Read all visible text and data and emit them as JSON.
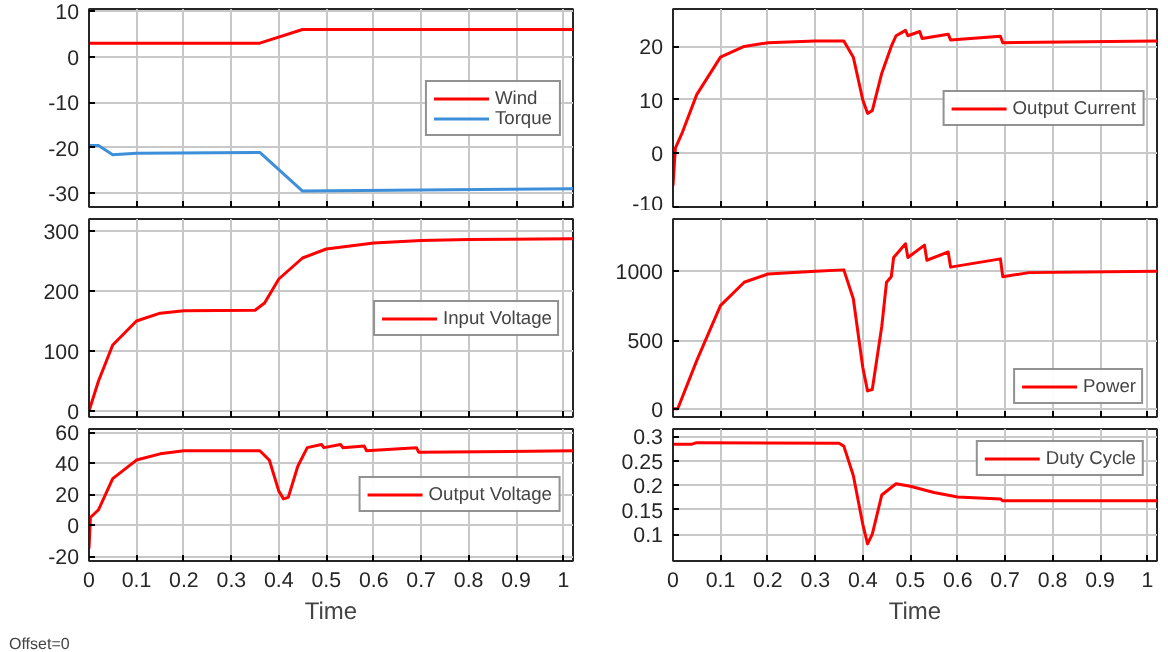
{
  "chart_data": [
    {
      "type": "line",
      "xlim": [
        0,
        1.02
      ],
      "xticks": [
        0,
        0.1,
        0.2,
        0.3,
        0.4,
        0.5,
        0.6,
        0.7,
        0.8,
        0.9,
        1
      ],
      "ylim": [
        -33,
        10.5
      ],
      "yticks": [
        -30,
        -20,
        -10,
        0,
        10
      ],
      "grid": true,
      "legend": "right",
      "tick_labels": "y",
      "x": [
        0,
        0.02,
        0.05,
        0.1,
        0.36,
        0.45,
        1.02
      ],
      "series": [
        {
          "name": "Wind",
          "color": "#ff0000",
          "values": [
            3,
            3,
            3,
            3,
            3,
            6,
            6
          ]
        },
        {
          "name": "Torque",
          "color": "#3d8fd9",
          "values": [
            -19.5,
            -19.5,
            -21.5,
            -21.2,
            -21,
            -29.5,
            -29
          ]
        }
      ]
    },
    {
      "type": "line",
      "xlim": [
        0,
        1.02
      ],
      "xticks": [
        0,
        0.1,
        0.2,
        0.3,
        0.4,
        0.5,
        0.6,
        0.7,
        0.8,
        0.9,
        1
      ],
      "ylim": [
        -10,
        27
      ],
      "yticks": [
        -10,
        0,
        10,
        20
      ],
      "grid": true,
      "legend": "right",
      "tick_labels": "y",
      "x": [
        0,
        0.005,
        0.02,
        0.05,
        0.1,
        0.15,
        0.2,
        0.3,
        0.36,
        0.38,
        0.4,
        0.41,
        0.42,
        0.44,
        0.46,
        0.47,
        0.48,
        0.49,
        0.495,
        0.52,
        0.525,
        0.58,
        0.585,
        0.69,
        0.695,
        1.02
      ],
      "series": [
        {
          "name": "Output Current",
          "color": "#ff0000",
          "values": [
            -6,
            1,
            4,
            11,
            18,
            20,
            20.7,
            21,
            21,
            18,
            10,
            7.5,
            8,
            15,
            20,
            22,
            22.5,
            23,
            22,
            22.8,
            21.5,
            22.3,
            21.2,
            21.9,
            20.7,
            21
          ]
        }
      ]
    },
    {
      "type": "line",
      "xlim": [
        0,
        1.02
      ],
      "xticks": [
        0,
        0.1,
        0.2,
        0.3,
        0.4,
        0.5,
        0.6,
        0.7,
        0.8,
        0.9,
        1
      ],
      "ylim": [
        -10,
        320
      ],
      "yticks": [
        0,
        100,
        200,
        300
      ],
      "grid": true,
      "legend": "right",
      "tick_labels": "y",
      "x": [
        0,
        0.02,
        0.05,
        0.1,
        0.15,
        0.2,
        0.35,
        0.37,
        0.4,
        0.45,
        0.5,
        0.6,
        0.7,
        0.8,
        1.02
      ],
      "series": [
        {
          "name": "Input Voltage",
          "color": "#ff0000",
          "values": [
            0,
            50,
            110,
            150,
            163,
            167,
            168,
            180,
            220,
            255,
            270,
            280,
            284,
            286,
            287
          ]
        }
      ]
    },
    {
      "type": "line",
      "xlim": [
        0,
        1.02
      ],
      "xticks": [
        0,
        0.1,
        0.2,
        0.3,
        0.4,
        0.5,
        0.6,
        0.7,
        0.8,
        0.9,
        1
      ],
      "ylim": [
        -60,
        1380
      ],
      "yticks": [
        0,
        500,
        1000
      ],
      "grid": true,
      "legend": "bottom right",
      "tick_labels": "y",
      "x": [
        0,
        0.01,
        0.05,
        0.1,
        0.15,
        0.2,
        0.3,
        0.36,
        0.38,
        0.4,
        0.41,
        0.42,
        0.44,
        0.45,
        0.46,
        0.465,
        0.49,
        0.495,
        0.53,
        0.535,
        0.58,
        0.585,
        0.69,
        0.695,
        0.75,
        1.02
      ],
      "series": [
        {
          "name": "Power",
          "color": "#ff0000",
          "values": [
            0,
            0,
            350,
            750,
            920,
            980,
            1000,
            1010,
            800,
            300,
            130,
            140,
            600,
            920,
            960,
            1100,
            1200,
            1100,
            1190,
            1080,
            1140,
            1030,
            1090,
            960,
            990,
            1000
          ]
        }
      ]
    },
    {
      "type": "line",
      "xlim": [
        0,
        1.02
      ],
      "xticks": [
        0,
        0.1,
        0.2,
        0.3,
        0.4,
        0.5,
        0.6,
        0.7,
        0.8,
        0.9,
        1
      ],
      "ylim": [
        -23,
        62
      ],
      "yticks": [
        -20,
        0,
        20,
        40,
        60
      ],
      "grid": true,
      "legend": "right",
      "xlabel": "Time",
      "annotations": [
        "Offset=0"
      ],
      "x": [
        0,
        0.003,
        0.02,
        0.05,
        0.1,
        0.15,
        0.2,
        0.36,
        0.38,
        0.4,
        0.41,
        0.42,
        0.44,
        0.46,
        0.49,
        0.495,
        0.53,
        0.535,
        0.58,
        0.585,
        0.69,
        0.695,
        1.02
      ],
      "series": [
        {
          "name": "Output Voltage",
          "color": "#ff0000",
          "values": [
            -15,
            5,
            10,
            30,
            42,
            46,
            48,
            48,
            42,
            22,
            17,
            18,
            38,
            50,
            52,
            50,
            52,
            50,
            51,
            48,
            50,
            47,
            48
          ]
        }
      ]
    },
    {
      "type": "line",
      "xlim": [
        0,
        1.02
      ],
      "xticks": [
        0,
        0.1,
        0.2,
        0.3,
        0.4,
        0.5,
        0.6,
        0.7,
        0.8,
        0.9,
        1
      ],
      "ylim": [
        0.045,
        0.315
      ],
      "yticks": [
        0.1,
        0.15,
        0.2,
        0.25,
        0.3
      ],
      "grid": true,
      "legend": "top right",
      "xlabel": "Time",
      "x": [
        0,
        0.04,
        0.05,
        0.35,
        0.36,
        0.38,
        0.4,
        0.41,
        0.42,
        0.44,
        0.47,
        0.5,
        0.55,
        0.6,
        0.69,
        0.695,
        1.02
      ],
      "series": [
        {
          "name": "Duty Cycle",
          "color": "#ff0000",
          "values": [
            0.284,
            0.284,
            0.287,
            0.286,
            0.28,
            0.22,
            0.12,
            0.08,
            0.1,
            0.18,
            0.203,
            0.198,
            0.185,
            0.176,
            0.172,
            0.168,
            0.168
          ]
        }
      ]
    }
  ]
}
